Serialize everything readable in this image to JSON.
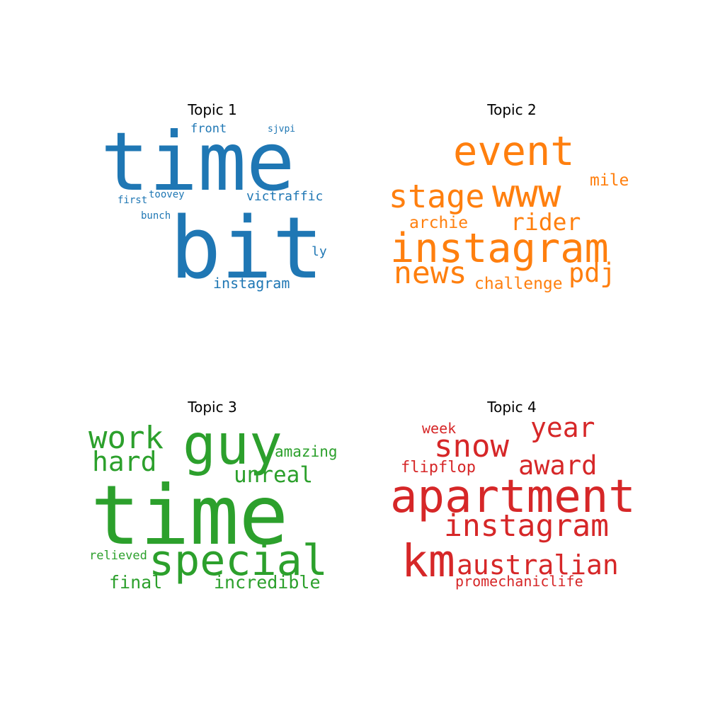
{
  "chart_data": [
    {
      "type": "wordcloud",
      "title": "Topic 1",
      "color": "#1f77b4",
      "words": [
        {
          "text": "time",
          "weight": 1.0
        },
        {
          "text": "bit",
          "weight": 1.0
        },
        {
          "text": "instagram",
          "weight": 0.22
        },
        {
          "text": "victraffic",
          "weight": 0.19
        },
        {
          "text": "front",
          "weight": 0.18
        },
        {
          "text": "ly",
          "weight": 0.18
        },
        {
          "text": "sjvpi",
          "weight": 0.13
        },
        {
          "text": "toovey",
          "weight": 0.14
        },
        {
          "text": "first",
          "weight": 0.14
        },
        {
          "text": "bunch",
          "weight": 0.14
        }
      ]
    },
    {
      "type": "wordcloud",
      "title": "Topic 2",
      "color": "#ff7f0e",
      "words": [
        {
          "text": "instagram",
          "weight": 1.0
        },
        {
          "text": "event",
          "weight": 0.69
        },
        {
          "text": "www",
          "weight": 0.63
        },
        {
          "text": "stage",
          "weight": 0.56
        },
        {
          "text": "news",
          "weight": 0.56
        },
        {
          "text": "rider",
          "weight": 0.45
        },
        {
          "text": "pdj",
          "weight": 0.44
        },
        {
          "text": "mile",
          "weight": 0.3
        },
        {
          "text": "archie",
          "weight": 0.3
        },
        {
          "text": "challenge",
          "weight": 0.3
        }
      ]
    },
    {
      "type": "wordcloud",
      "title": "Topic 3",
      "color": "#2ca02c",
      "words": [
        {
          "text": "time",
          "weight": 1.0
        },
        {
          "text": "guy",
          "weight": 0.69
        },
        {
          "text": "special",
          "weight": 0.56
        },
        {
          "text": "work",
          "weight": 0.44
        },
        {
          "text": "hard",
          "weight": 0.38
        },
        {
          "text": "unreal",
          "weight": 0.3
        },
        {
          "text": "incredible",
          "weight": 0.24
        },
        {
          "text": "final",
          "weight": 0.24
        },
        {
          "text": "amazing",
          "weight": 0.2
        },
        {
          "text": "relieved",
          "weight": 0.17
        }
      ]
    },
    {
      "type": "wordcloud",
      "title": "Topic 4",
      "color": "#d62728",
      "words": [
        {
          "text": "apartment",
          "weight": 1.0
        },
        {
          "text": "km",
          "weight": 0.86
        },
        {
          "text": "instagram",
          "weight": 0.67
        },
        {
          "text": "australian",
          "weight": 0.6
        },
        {
          "text": "snow",
          "weight": 0.6
        },
        {
          "text": "year",
          "weight": 0.5
        },
        {
          "text": "award",
          "weight": 0.5
        },
        {
          "text": "flipflop",
          "weight": 0.33
        },
        {
          "text": "week",
          "weight": 0.3
        },
        {
          "text": "promechaniclife",
          "weight": 0.3
        }
      ]
    }
  ]
}
